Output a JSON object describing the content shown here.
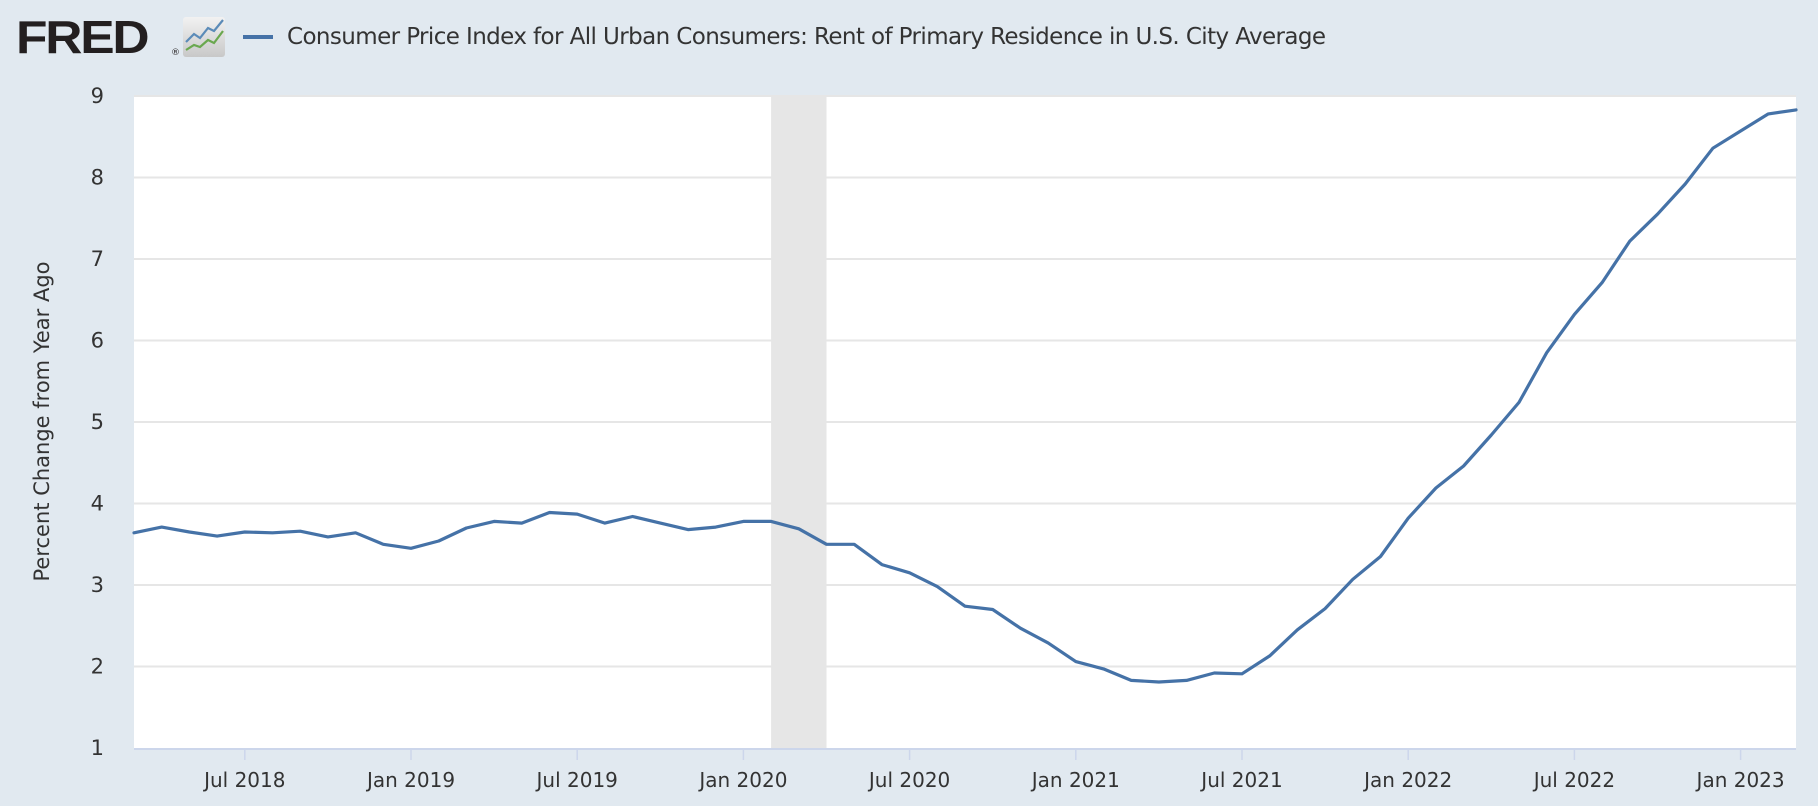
{
  "header": {
    "logo_text": "FRED",
    "logo_registered": "®",
    "logo_icon": "chart-lines-icon"
  },
  "legend": {
    "series_label": "Consumer Price Index for All Urban Consumers: Rent of Primary Residence in U.S. City Average",
    "series_color": "#4572a7"
  },
  "colors": {
    "background": "#e1e9f0",
    "plot_background": "#ffffff",
    "gridline": "#e6e6e6",
    "recession_shade": "#e6e6e6",
    "axis_line": "#ccd6eb",
    "series": "#4572a7"
  },
  "chart_data": {
    "type": "line",
    "title": "",
    "xlabel": "",
    "ylabel": "Percent Change from Year Ago",
    "ylim": [
      1,
      9
    ],
    "yticks": [
      "1",
      "2",
      "3",
      "4",
      "5",
      "6",
      "7",
      "8",
      "9"
    ],
    "xlim": [
      "2018-03",
      "2023-03"
    ],
    "xticks": [
      {
        "label": "Jul 2018",
        "date": "2018-07"
      },
      {
        "label": "Jan 2019",
        "date": "2019-01"
      },
      {
        "label": "Jul 2019",
        "date": "2019-07"
      },
      {
        "label": "Jan 2020",
        "date": "2020-01"
      },
      {
        "label": "Jul 2020",
        "date": "2020-07"
      },
      {
        "label": "Jan 2021",
        "date": "2021-01"
      },
      {
        "label": "Jul 2021",
        "date": "2021-07"
      },
      {
        "label": "Jan 2022",
        "date": "2022-01"
      },
      {
        "label": "Jul 2022",
        "date": "2022-07"
      },
      {
        "label": "Jan 2023",
        "date": "2023-01"
      }
    ],
    "grid": true,
    "legend_position": "top-left",
    "recessions": [
      {
        "start": "2020-02",
        "end": "2020-04"
      }
    ],
    "series": [
      {
        "name": "Consumer Price Index for All Urban Consumers: Rent of Primary Residence in U.S. City Average",
        "x": [
          "2018-03",
          "2018-04",
          "2018-05",
          "2018-06",
          "2018-07",
          "2018-08",
          "2018-09",
          "2018-10",
          "2018-11",
          "2018-12",
          "2019-01",
          "2019-02",
          "2019-03",
          "2019-04",
          "2019-05",
          "2019-06",
          "2019-07",
          "2019-08",
          "2019-09",
          "2019-10",
          "2019-11",
          "2019-12",
          "2020-01",
          "2020-02",
          "2020-03",
          "2020-04",
          "2020-05",
          "2020-06",
          "2020-07",
          "2020-08",
          "2020-09",
          "2020-10",
          "2020-11",
          "2020-12",
          "2021-01",
          "2021-02",
          "2021-03",
          "2021-04",
          "2021-05",
          "2021-06",
          "2021-07",
          "2021-08",
          "2021-09",
          "2021-10",
          "2021-11",
          "2021-12",
          "2022-01",
          "2022-02",
          "2022-03",
          "2022-04",
          "2022-05",
          "2022-06",
          "2022-07",
          "2022-08",
          "2022-09",
          "2022-10",
          "2022-11",
          "2022-12",
          "2023-01",
          "2023-02",
          "2023-03"
        ],
        "values": [
          3.64,
          3.71,
          3.65,
          3.6,
          3.65,
          3.64,
          3.66,
          3.59,
          3.64,
          3.5,
          3.45,
          3.54,
          3.7,
          3.78,
          3.76,
          3.89,
          3.87,
          3.76,
          3.84,
          3.76,
          3.68,
          3.71,
          3.78,
          3.78,
          3.69,
          3.5,
          3.5,
          3.25,
          3.15,
          2.98,
          2.74,
          2.7,
          2.47,
          2.29,
          2.06,
          1.97,
          1.83,
          1.81,
          1.83,
          1.92,
          1.91,
          2.13,
          2.45,
          2.71,
          3.07,
          3.35,
          3.82,
          4.19,
          4.46,
          4.84,
          5.24,
          5.85,
          6.32,
          6.71,
          7.22,
          7.55,
          7.92,
          8.36,
          8.57,
          8.78,
          8.83
        ]
      }
    ]
  }
}
